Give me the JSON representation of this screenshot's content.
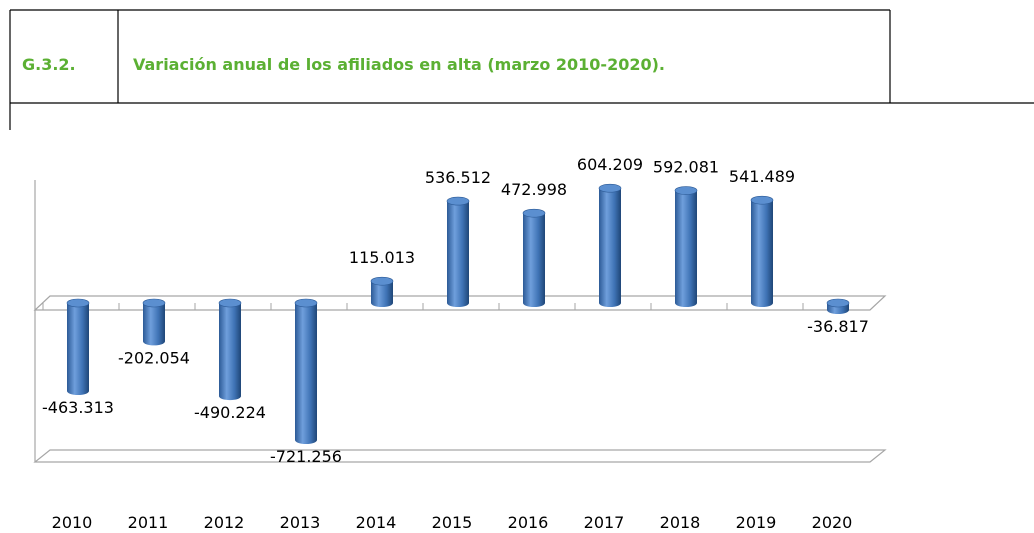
{
  "header": {
    "code": "G.3.2.",
    "title": "Variación anual de los afiliados en alta (marzo 2010-2020)."
  },
  "chart_data": {
    "type": "bar",
    "style": "3d-cylinder",
    "color": "#4a7ebb",
    "categories": [
      "2010",
      "2011",
      "2012",
      "2013",
      "2014",
      "2015",
      "2016",
      "2017",
      "2018",
      "2019",
      "2020"
    ],
    "values": [
      -463313,
      -202054,
      -490224,
      -721256,
      115013,
      536512,
      472998,
      604209,
      592081,
      541489,
      -36817
    ],
    "value_labels": [
      "-463.313",
      "-202.054",
      "-490.224",
      "-721.256",
      "115.013",
      "536.512",
      "472.998",
      "604.209",
      "592.081",
      "541.489",
      "-36.817"
    ]
  }
}
